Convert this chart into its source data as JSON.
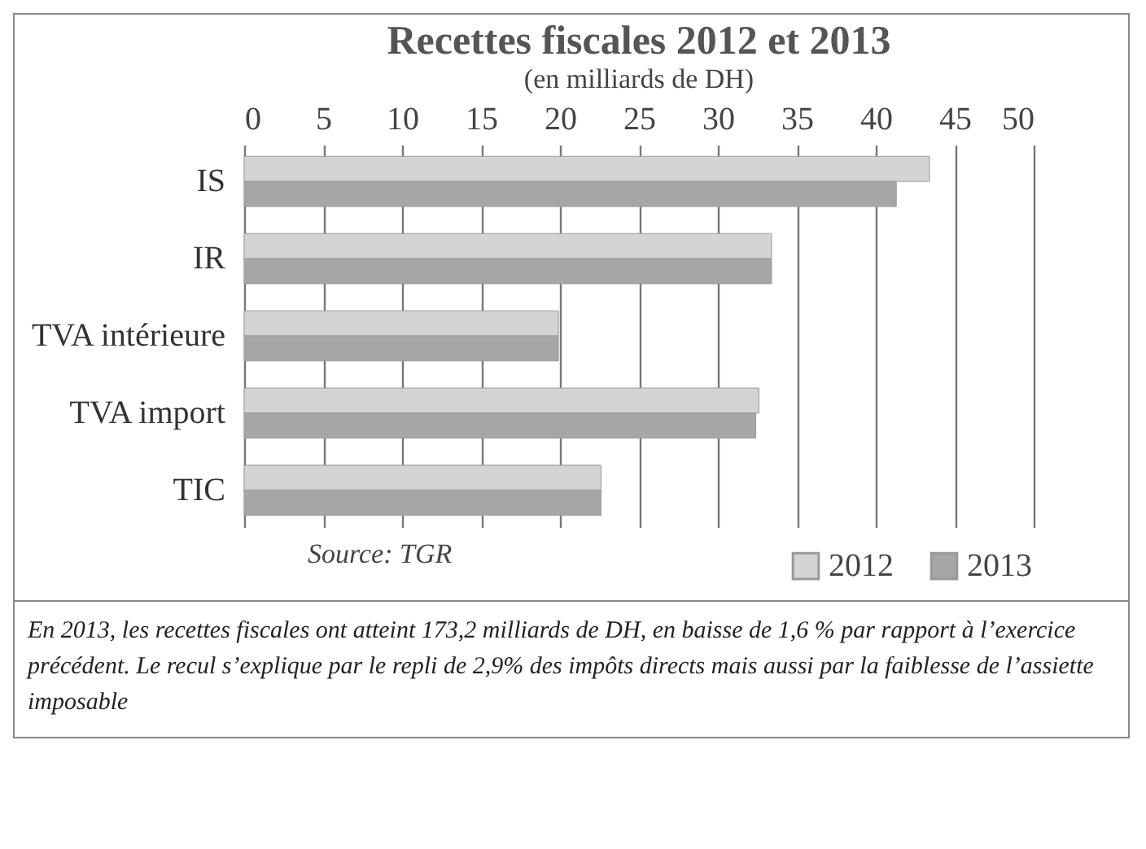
{
  "chart_data": {
    "type": "bar",
    "orientation": "horizontal",
    "title": "Recettes fiscales 2012 et 2013",
    "subtitle": "(en milliards de DH)",
    "categories": [
      "IS",
      "IR",
      "TVA intérieure",
      "TVA import",
      "TIC"
    ],
    "series": [
      {
        "name": "2012",
        "color": "#d4d4d4",
        "values": [
          43.4,
          33.4,
          19.9,
          32.6,
          22.6
        ]
      },
      {
        "name": "2013",
        "color": "#a6a6a6",
        "values": [
          41.3,
          33.4,
          19.9,
          32.4,
          22.6
        ]
      }
    ],
    "xlim": [
      0,
      50
    ],
    "xticks": [
      0,
      5,
      10,
      15,
      20,
      25,
      30,
      35,
      40,
      45,
      50
    ],
    "grid": "x",
    "legend": "bottom right",
    "annotations": [
      "Source: TGR",
      "En 2013, les recettes fiscales ont atteint 173,2 milliards de DH, en baisse de 1,6 % par rapport à l’exercice précédent. Le recul s’explique par le repli de 2,9% des impôts directs mais aussi par la faiblesse de l’assiette imposable"
    ]
  }
}
